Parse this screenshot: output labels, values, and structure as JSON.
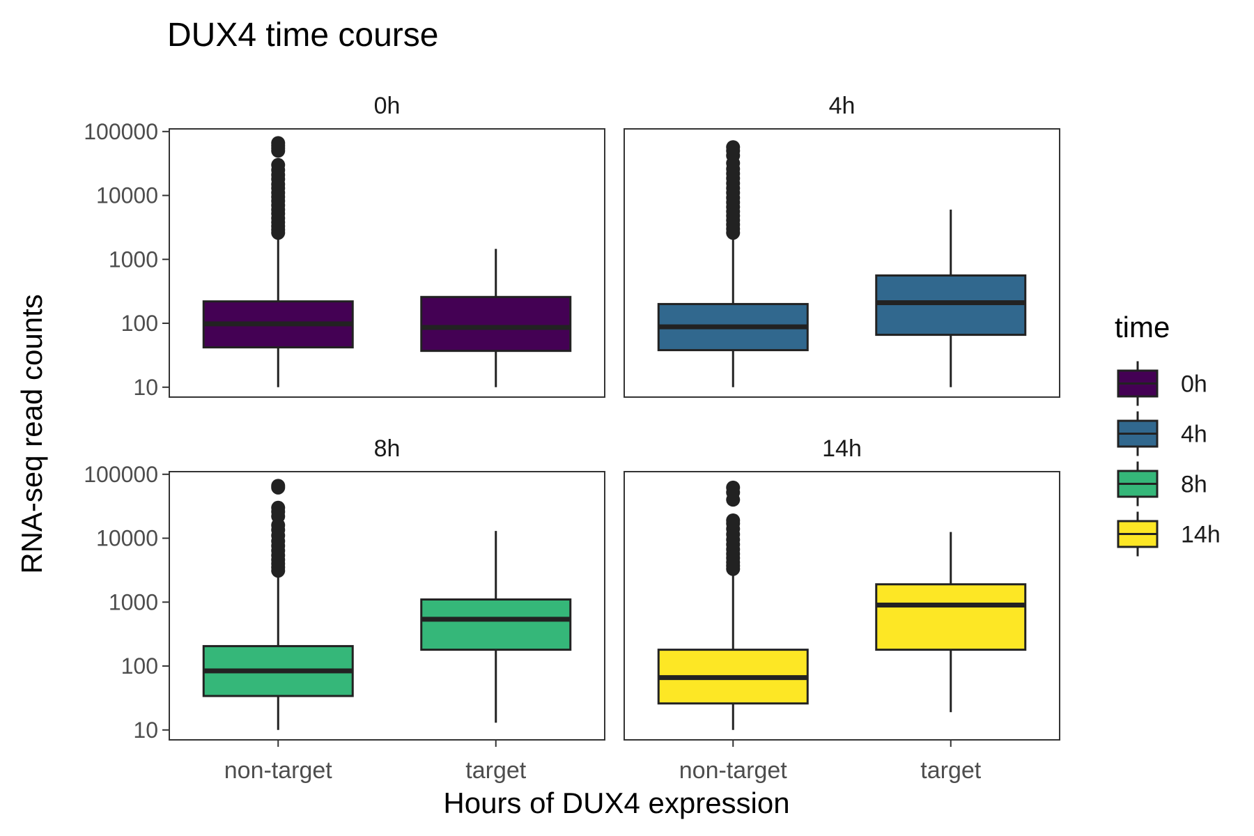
{
  "chart_data": {
    "type": "boxplot",
    "title": "DUX4 time course",
    "xlabel": "Hours of DUX4 expression",
    "ylabel": "RNA-seq read counts",
    "yscale": "log10",
    "ylim": [
      7,
      110000
    ],
    "yticks": [
      10,
      100,
      1000,
      10000,
      100000
    ],
    "ytick_labels": [
      "10",
      "100",
      "1000",
      "10000",
      "100000"
    ],
    "categories": [
      "non-target",
      "target"
    ],
    "grid": false,
    "legend": {
      "title": "time",
      "position": "right",
      "entries": [
        {
          "label": "0h",
          "color": "#440154"
        },
        {
          "label": "4h",
          "color": "#31688E"
        },
        {
          "label": "8h",
          "color": "#35B779"
        },
        {
          "label": "14h",
          "color": "#FDE725"
        }
      ]
    },
    "facets": [
      {
        "label": "0h",
        "color": "#440154",
        "boxes": [
          {
            "category": "non-target",
            "whisker_low": 10,
            "q1": 42,
            "median": 98,
            "q3": 220,
            "whisker_high": 2500,
            "outliers": [
              2600,
              2900,
              3300,
              3800,
              4400,
              5200,
              6000,
              7000,
              8200,
              9500,
              11000,
              13000,
              15000,
              18000,
              21000,
              25000,
              30000,
              50000,
              55000,
              60000,
              66000
            ]
          },
          {
            "category": "target",
            "whisker_low": 10,
            "q1": 37,
            "median": 86,
            "q3": 258,
            "whisker_high": 1460,
            "outliers": []
          }
        ]
      },
      {
        "label": "4h",
        "color": "#31688E",
        "boxes": [
          {
            "category": "non-target",
            "whisker_low": 10,
            "q1": 38,
            "median": 88,
            "q3": 200,
            "whisker_high": 2500,
            "outliers": [
              2600,
              3000,
              3500,
              4100,
              4800,
              5600,
              6600,
              7800,
              9200,
              11000,
              13000,
              15500,
              18500,
              22000,
              26000,
              32000,
              42000,
              50000,
              57000
            ]
          },
          {
            "category": "target",
            "whisker_low": 10,
            "q1": 66,
            "median": 210,
            "q3": 560,
            "whisker_high": 6000,
            "outliers": []
          }
        ]
      },
      {
        "label": "8h",
        "color": "#35B779",
        "boxes": [
          {
            "category": "non-target",
            "whisker_low": 10,
            "q1": 34,
            "median": 84,
            "q3": 205,
            "whisker_high": 3000,
            "outliers": [
              3100,
              3500,
              4000,
              4600,
              5400,
              6400,
              7600,
              9000,
              11000,
              13500,
              16000,
              22000,
              26000,
              30000,
              62000,
              66000
            ]
          },
          {
            "category": "target",
            "whisker_low": 13,
            "q1": 180,
            "median": 540,
            "q3": 1100,
            "whisker_high": 13000,
            "outliers": []
          }
        ]
      },
      {
        "label": "14h",
        "color": "#FDE725",
        "boxes": [
          {
            "category": "non-target",
            "whisker_low": 10,
            "q1": 26,
            "median": 66,
            "q3": 180,
            "whisker_high": 3200,
            "outliers": [
              3300,
              3700,
              4200,
              4900,
              5700,
              6700,
              8000,
              9500,
              11500,
              14000,
              17000,
              19000,
              40000,
              52000,
              62000
            ]
          },
          {
            "category": "target",
            "whisker_low": 19,
            "q1": 180,
            "median": 900,
            "q3": 1900,
            "whisker_high": 12500,
            "outliers": []
          }
        ]
      }
    ]
  }
}
